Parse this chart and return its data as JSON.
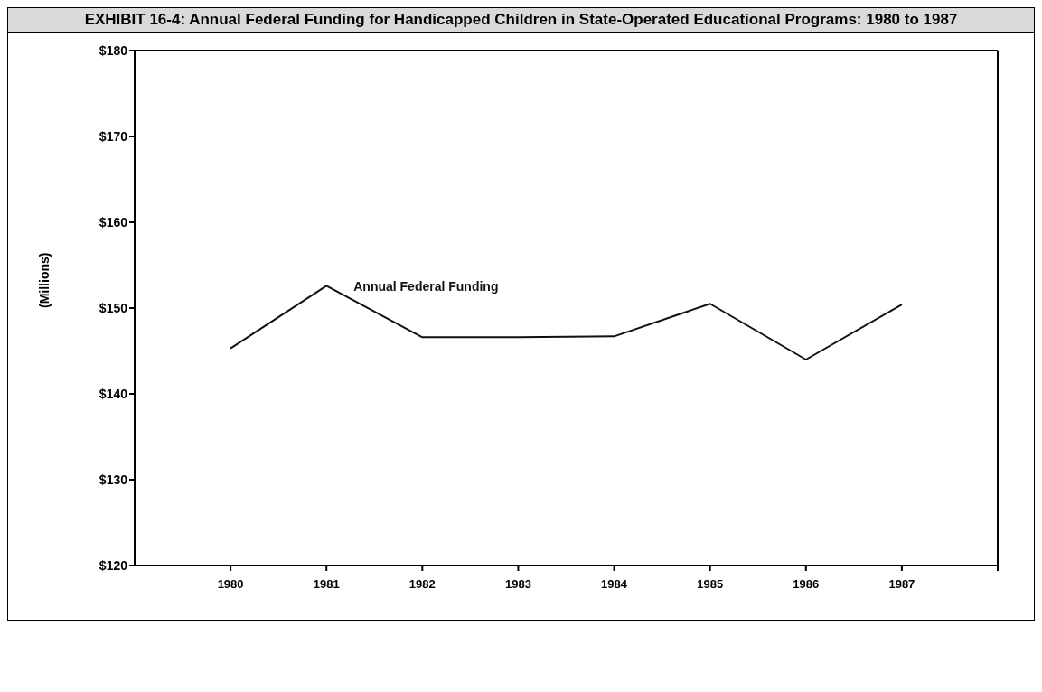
{
  "chart_data": {
    "type": "line",
    "title": "EXHIBIT 16-4: Annual Federal Funding for Handicapped Children in State-Operated Educational Programs: 1980 to 1987",
    "ylabel": "(Millions)",
    "x": [
      1980,
      1981,
      1982,
      1983,
      1984,
      1985,
      1986,
      1987
    ],
    "series": [
      {
        "name": "Annual Federal Funding",
        "color": "#111111",
        "values": [
          145.3,
          152.6,
          146.6,
          146.6,
          146.7,
          150.5,
          144.0,
          150.4
        ]
      }
    ],
    "xlim": [
      1979,
      1988
    ],
    "xticks": [
      1980,
      1981,
      1982,
      1983,
      1984,
      1985,
      1986,
      1987,
      {
        "value": 1988,
        "label": null
      }
    ],
    "ylim": [
      120,
      180
    ],
    "yticks": [
      {
        "value": 120,
        "label": "$120"
      },
      {
        "value": 130,
        "label": "$130"
      },
      {
        "value": 140,
        "label": "$140"
      },
      {
        "value": 150,
        "label": "$150"
      },
      {
        "value": 160,
        "label": "$160"
      },
      {
        "value": 170,
        "label": "$170"
      },
      {
        "value": 180,
        "label": "$180"
      }
    ],
    "grid": false,
    "marker": "none",
    "line_style": "solid"
  }
}
